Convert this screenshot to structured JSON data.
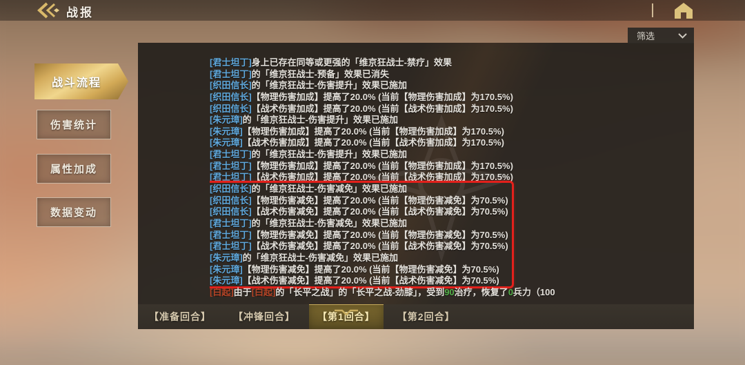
{
  "header": {
    "title": "战报"
  },
  "icons": {
    "back": "double-chevron-left-icon",
    "home": "home-icon",
    "filter_caret": "chevron-down-icon",
    "active_tab_caret": "chevron-down-icon"
  },
  "filter": {
    "label": "筛选"
  },
  "sidebar": {
    "items": [
      {
        "key": "battle-flow",
        "label": "战斗流程",
        "active": true
      },
      {
        "key": "damage-stats",
        "label": "伤害统计",
        "active": false
      },
      {
        "key": "attribute-bonus",
        "label": "属性加成",
        "active": false
      },
      {
        "key": "data-changes",
        "label": "数据变动",
        "active": false
      }
    ]
  },
  "log": {
    "sections": [
      {
        "highlight": false,
        "lines": [
          [
            [
              "n",
              "[君士坦丁]"
            ],
            [
              "t",
              "身上已存在同等或更强的「维京狂战士-禁疗」效果"
            ]
          ],
          [
            [
              "n",
              "[君士坦丁]"
            ],
            [
              "t",
              "的「维京狂战士-预备」效果已消失"
            ]
          ],
          [
            [
              "n",
              "[织田信长]"
            ],
            [
              "t",
              "的「维京狂战士-伤害提升」效果已施加"
            ]
          ],
          [
            [
              "n",
              "[织田信长]"
            ],
            [
              "t",
              "【物理伤害加成】提高了20.0% (当前【物理伤害加成】为170.5%)"
            ]
          ],
          [
            [
              "n",
              "[织田信长]"
            ],
            [
              "t",
              "【战术伤害加成】提高了20.0% (当前【战术伤害加成】为170.5%)"
            ]
          ],
          [
            [
              "n",
              "[朱元璋]"
            ],
            [
              "t",
              "的「维京狂战士-伤害提升」效果已施加"
            ]
          ],
          [
            [
              "n",
              "[朱元璋]"
            ],
            [
              "t",
              "【物理伤害加成】提高了20.0% (当前【物理伤害加成】为170.5%)"
            ]
          ],
          [
            [
              "n",
              "[朱元璋]"
            ],
            [
              "t",
              "【战术伤害加成】提高了20.0% (当前【战术伤害加成】为170.5%)"
            ]
          ],
          [
            [
              "n",
              "[君士坦丁]"
            ],
            [
              "t",
              "的「维京狂战士-伤害提升」效果已施加"
            ]
          ],
          [
            [
              "n",
              "[君士坦丁]"
            ],
            [
              "t",
              "【物理伤害加成】提高了20.0% (当前【物理伤害加成】为170.5%)"
            ]
          ],
          [
            [
              "n",
              "[君士坦丁]"
            ],
            [
              "t",
              "【战术伤害加成】提高了20.0% (当前【战术伤害加成】为170.5%)"
            ]
          ]
        ]
      },
      {
        "highlight": true,
        "lines": [
          [
            [
              "n",
              "[织田信长]"
            ],
            [
              "t",
              "的「维京狂战士-伤害减免」效果已施加"
            ]
          ],
          [
            [
              "n",
              "[织田信长]"
            ],
            [
              "t",
              "【物理伤害减免】提高了20.0% (当前【物理伤害减免】为70.5%)"
            ]
          ],
          [
            [
              "n",
              "[织田信长]"
            ],
            [
              "t",
              "【战术伤害减免】提高了20.0% (当前【战术伤害减免】为70.5%)"
            ]
          ],
          [
            [
              "n",
              "[君士坦丁]"
            ],
            [
              "t",
              "的「维京狂战士-伤害减免」效果已施加"
            ]
          ],
          [
            [
              "n",
              "[君士坦丁]"
            ],
            [
              "t",
              "【物理伤害减免】提高了20.0% (当前【物理伤害减免】为70.5%)"
            ]
          ],
          [
            [
              "n",
              "[君士坦丁]"
            ],
            [
              "t",
              "【战术伤害减免】提高了20.0% (当前【战术伤害减免】为70.5%)"
            ]
          ],
          [
            [
              "n",
              "[朱元璋]"
            ],
            [
              "t",
              "的「维京狂战士-伤害减免」效果已施加"
            ]
          ],
          [
            [
              "n",
              "[朱元璋]"
            ],
            [
              "t",
              "【物理伤害减免】提高了20.0% (当前【物理伤害减免】为70.5%)"
            ]
          ],
          [
            [
              "n",
              "[朱元璋]"
            ],
            [
              "t",
              "【战术伤害减免】提高了20.0% (当前【战术伤害减免】为70.5%)"
            ]
          ]
        ]
      },
      {
        "highlight": false,
        "lines": [
          [
            [
              "e",
              "[白起]"
            ],
            [
              "t",
              "由于"
            ],
            [
              "e",
              "[白起]"
            ],
            [
              "t",
              "的「长平之战」的「长平之战-劲膝」，受到"
            ],
            [
              "g",
              "90"
            ],
            [
              "t",
              "治疗，恢复了"
            ],
            [
              "g",
              "0"
            ],
            [
              "t",
              "兵力（100"
            ]
          ]
        ]
      }
    ]
  },
  "tabs": [
    {
      "key": "prep-round",
      "label": "【准备回合】",
      "active": false
    },
    {
      "key": "charge-round",
      "label": "【冲锋回合】",
      "active": false
    },
    {
      "key": "round-1",
      "label": "【第1回合】",
      "active": true
    },
    {
      "key": "round-2",
      "label": "【第2回合】",
      "active": false
    }
  ],
  "colors": {
    "accent_gold": "#d9b96a",
    "name_blue": "#5fa8dc",
    "enemy_red": "#b64527",
    "heal_green": "#54b04a",
    "highlight_box_red": "#e3201b",
    "panel_bg": "#25211d",
    "active_tab_bg": "#6c5c2a"
  }
}
